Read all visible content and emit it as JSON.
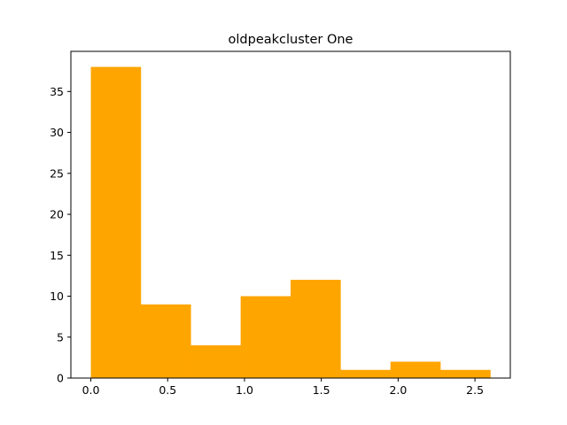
{
  "chart_data": {
    "type": "bar",
    "subtype": "histogram",
    "title": "oldpeakcluster One",
    "xlabel": "",
    "ylabel": "",
    "bin_edges": [
      0.0,
      0.325,
      0.65,
      0.975,
      1.3,
      1.625,
      1.95,
      2.275,
      2.6
    ],
    "values": [
      38,
      9,
      4,
      10,
      12,
      1,
      2,
      1
    ],
    "xlim": [
      -0.13,
      2.73
    ],
    "ylim": [
      0,
      39.9
    ],
    "x_ticks": [
      0.0,
      0.5,
      1.0,
      1.5,
      2.0,
      2.5
    ],
    "x_tick_labels": [
      "0.0",
      "0.5",
      "1.0",
      "1.5",
      "2.0",
      "2.5"
    ],
    "y_ticks": [
      0,
      5,
      10,
      15,
      20,
      25,
      30,
      35
    ],
    "y_tick_labels": [
      "0",
      "5",
      "10",
      "15",
      "20",
      "25",
      "30",
      "35"
    ],
    "bar_color": "#ffa500",
    "grid": false,
    "legend": "none"
  }
}
